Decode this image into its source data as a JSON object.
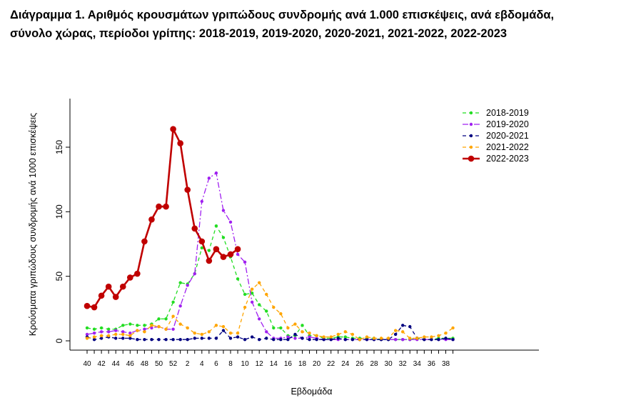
{
  "title_line1": "Διάγραμμα 1. Αριθμός κρουσμάτων γριπώδους συνδρομής ανά 1.000 επισκέψεις, ανά εβδομάδα,",
  "title_line2": "σύνολο χώρας, περίοδοι γρίπης: 2018-2019, 2019-2020, 2020-2021, 2021-2022, 2022-2023",
  "chart_data": {
    "type": "line",
    "xlabel": "Εβδομάδα",
    "ylabel": "Κρούσματα γριπώδους συνδρομής ανά 1000 επισκέψεις",
    "ylim": [
      0,
      180
    ],
    "yticks": [
      0,
      50,
      100,
      150
    ],
    "x_weeks": [
      40,
      41,
      42,
      43,
      44,
      45,
      46,
      47,
      48,
      49,
      50,
      51,
      52,
      1,
      2,
      3,
      4,
      5,
      6,
      7,
      8,
      9,
      10,
      11,
      12,
      13,
      14,
      15,
      16,
      17,
      18,
      19,
      20,
      21,
      22,
      23,
      24,
      25,
      26,
      27,
      28,
      29,
      30,
      31,
      32,
      33,
      34,
      35,
      36,
      37,
      38,
      39
    ],
    "x_tick_labels": [
      "40",
      "42",
      "44",
      "46",
      "48",
      "50",
      "52",
      "2",
      "4",
      "6",
      "8",
      "10",
      "12",
      "14",
      "16",
      "18",
      "20",
      "22",
      "24",
      "26",
      "28",
      "30",
      "32",
      "34",
      "36",
      "38"
    ],
    "legend_position": "top-right",
    "grid": false,
    "series": [
      {
        "name": "2018-2019",
        "color": "#22dd22",
        "style": "dashed",
        "values": [
          10,
          9,
          10,
          9,
          9,
          12,
          13,
          12,
          12,
          13,
          17,
          17,
          30,
          45,
          44,
          52,
          72,
          70,
          89,
          80,
          65,
          48,
          36,
          37,
          28,
          23,
          10,
          10,
          4,
          4,
          12,
          4,
          4,
          2,
          2,
          3,
          3,
          2,
          2,
          2,
          2,
          1,
          1,
          1,
          1,
          1,
          2,
          1,
          1,
          2,
          2,
          2
        ]
      },
      {
        "name": "2019-2020",
        "color": "#a020f0",
        "style": "dashdot",
        "values": [
          5,
          6,
          7,
          7,
          8,
          7,
          6,
          8,
          9,
          10,
          11,
          9,
          9,
          27,
          43,
          52,
          108,
          126,
          130,
          101,
          92,
          67,
          61,
          30,
          17,
          7,
          2,
          2,
          3,
          2,
          2,
          3,
          2,
          1,
          1,
          1,
          1,
          1,
          1,
          1,
          1,
          1,
          1,
          1,
          1,
          1,
          1,
          1,
          1,
          1,
          1,
          1
        ]
      },
      {
        "name": "2020-2021",
        "color": "#000080",
        "style": "dashed",
        "values": [
          3,
          1,
          2,
          3,
          2,
          2,
          2,
          1,
          1,
          1,
          1,
          1,
          1,
          1,
          1,
          2,
          2,
          2,
          2,
          8,
          2,
          3,
          1,
          3,
          1,
          2,
          1,
          1,
          1,
          5,
          2,
          1,
          1,
          1,
          1,
          2,
          1,
          1,
          1,
          1,
          1,
          1,
          1,
          5,
          12,
          11,
          2,
          1,
          1,
          1,
          2,
          1
        ]
      },
      {
        "name": "2021-2022",
        "color": "#ffa500",
        "style": "dashed",
        "values": [
          2,
          3,
          4,
          4,
          5,
          5,
          4,
          8,
          7,
          12,
          11,
          9,
          19,
          13,
          10,
          6,
          5,
          7,
          12,
          11,
          6,
          6,
          26,
          40,
          45,
          36,
          26,
          21,
          10,
          13,
          7,
          6,
          4,
          3,
          3,
          5,
          7,
          5,
          1,
          3,
          2,
          2,
          2,
          8,
          7,
          2,
          2,
          3,
          3,
          4,
          6,
          10
        ]
      },
      {
        "name": "2022-2023",
        "color": "#c00000",
        "style": "solid",
        "values": [
          27,
          26,
          35,
          42,
          34,
          42,
          49,
          52,
          77,
          94,
          104,
          104,
          164,
          153,
          117,
          87,
          77,
          62,
          71,
          65,
          67,
          71
        ]
      }
    ]
  }
}
